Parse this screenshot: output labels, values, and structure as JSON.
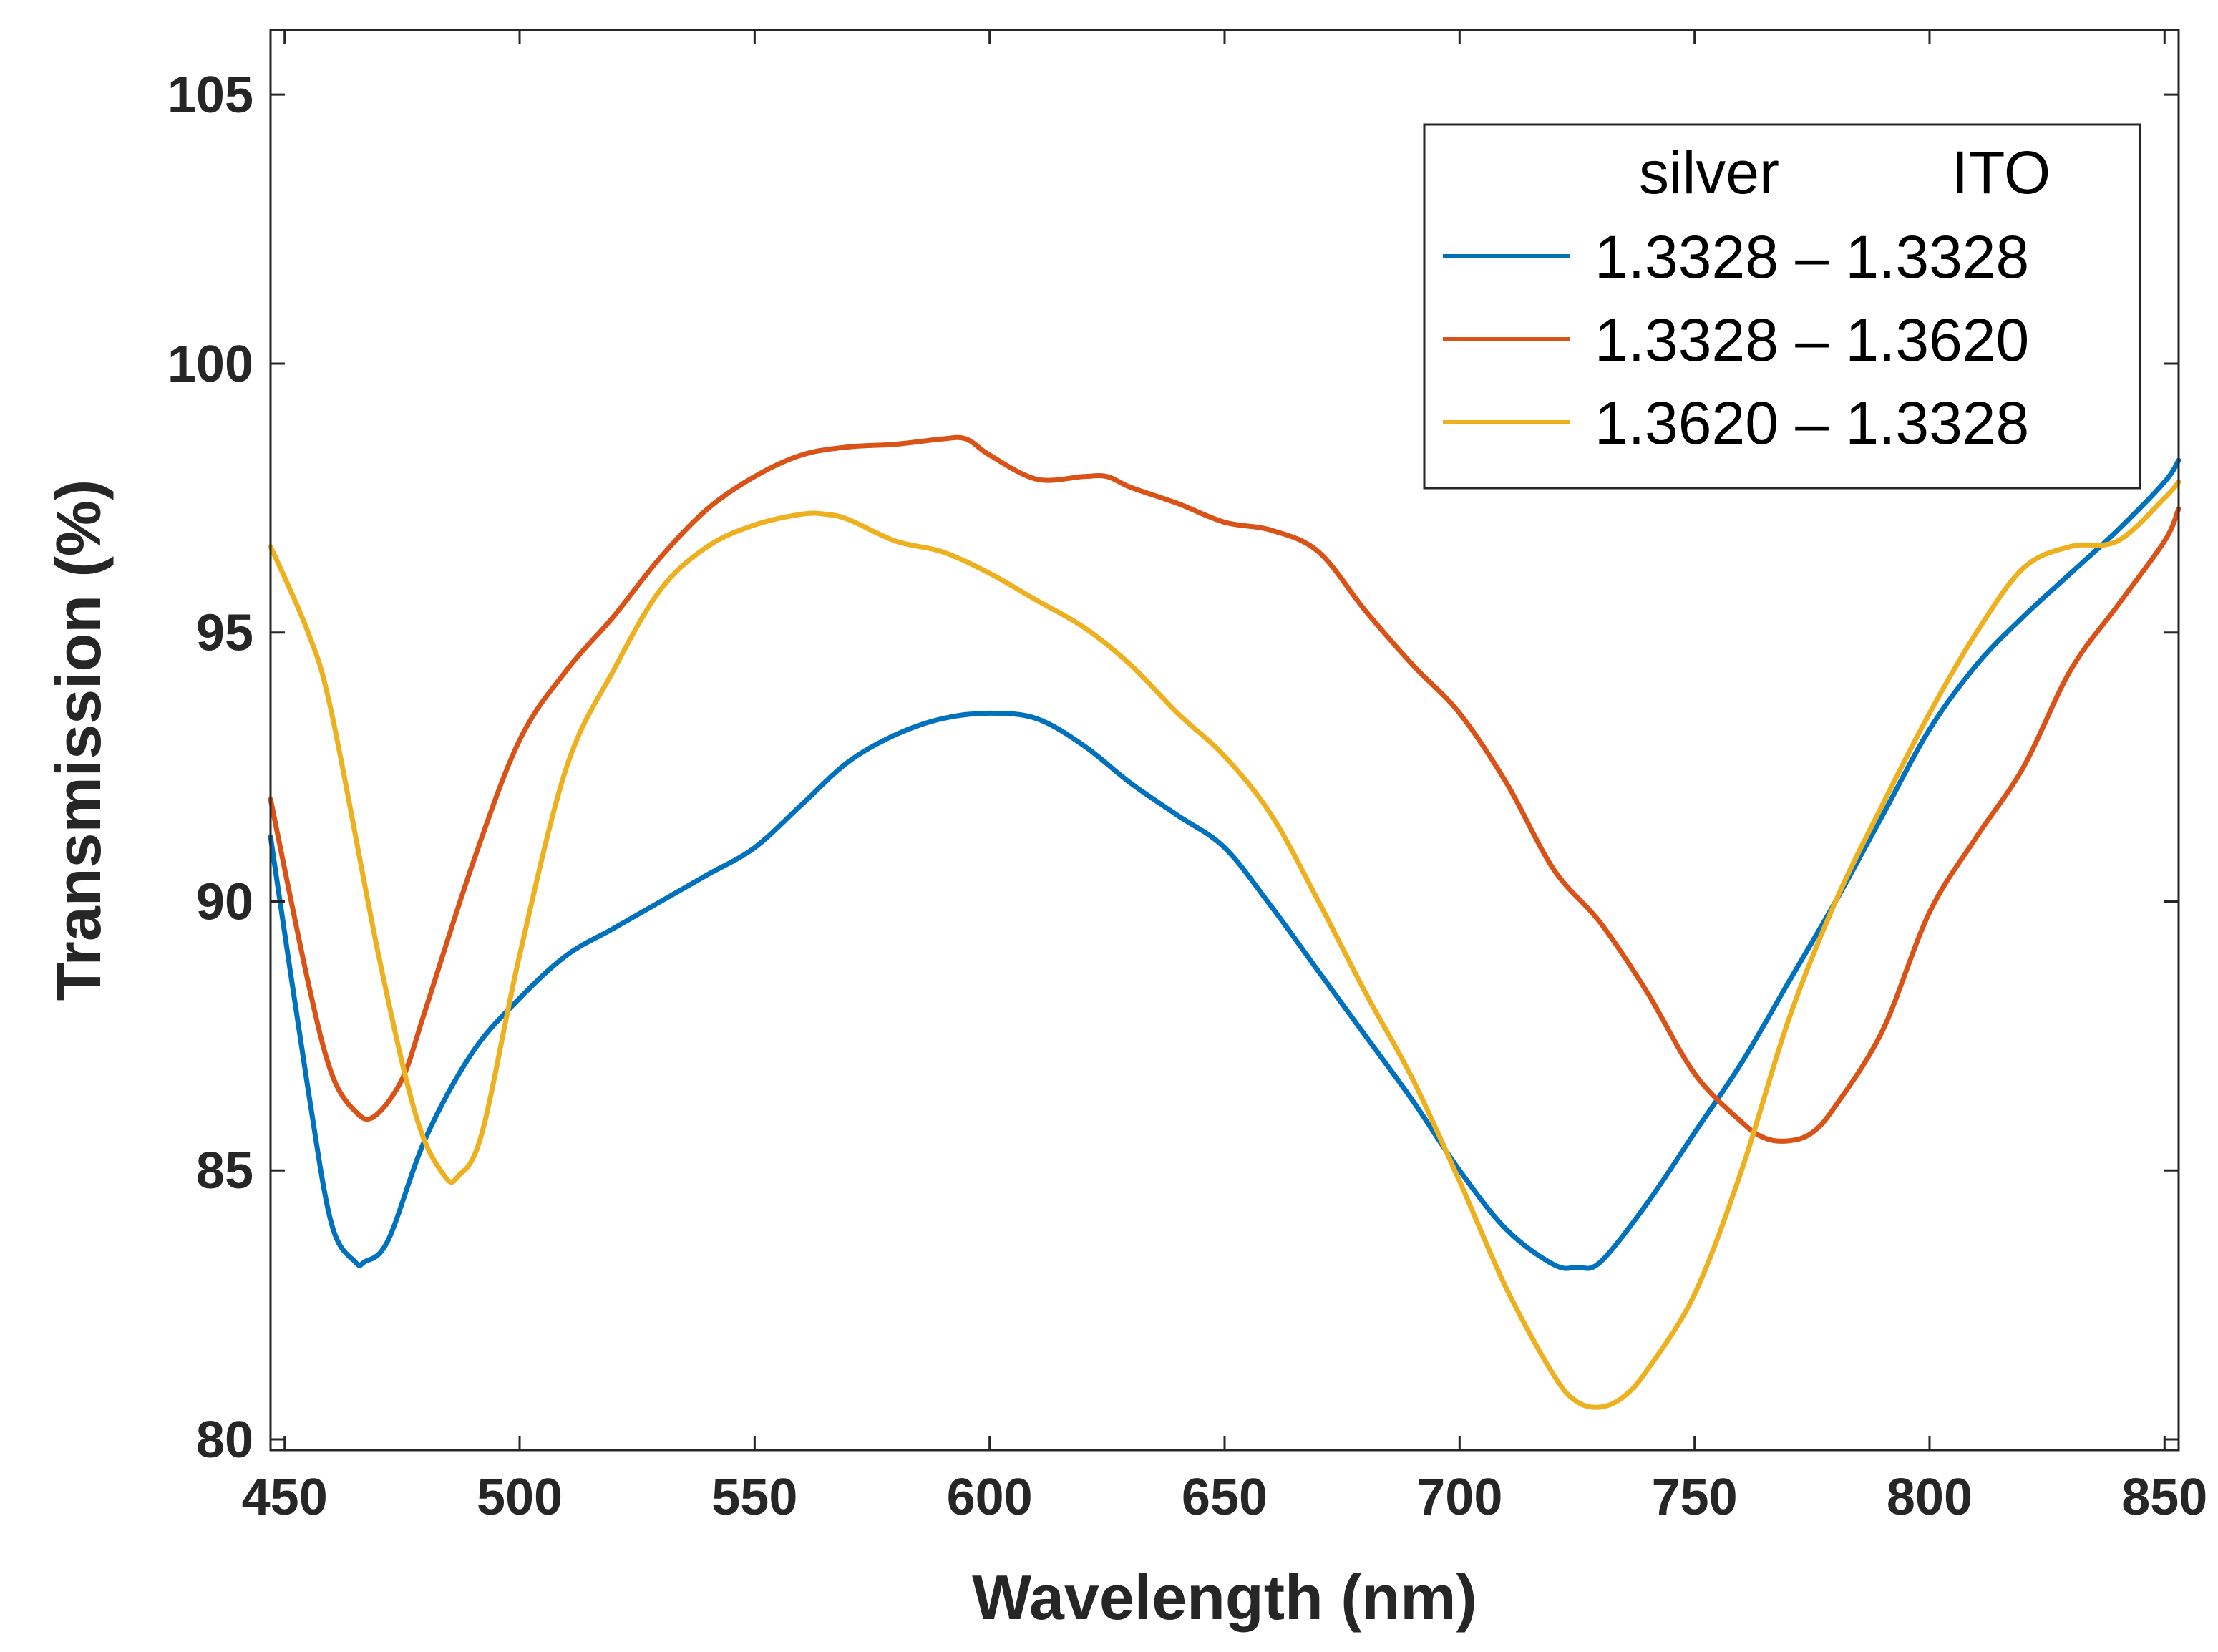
{
  "chart_data": {
    "type": "line",
    "title": "",
    "xlabel": "Wavelength (nm)",
    "ylabel": "Transmission (%)",
    "xlim": [
      447,
      853
    ],
    "ylim": [
      79.8,
      106.2
    ],
    "xticks": [
      450,
      500,
      550,
      600,
      650,
      700,
      750,
      800,
      850
    ],
    "yticks": [
      80,
      85,
      90,
      95,
      100,
      105
    ],
    "grid": false,
    "legend": {
      "position": "top-right",
      "header_left": "silver",
      "header_right": "ITO"
    },
    "series": [
      {
        "name": "1.3328 – 1.3328",
        "color": "#0072BD",
        "x": [
          447,
          455,
          460,
          465,
          467,
          472,
          480,
          490,
          500,
          510,
          520,
          530,
          540,
          550,
          560,
          570,
          580,
          590,
          600,
          610,
          620,
          630,
          640,
          650,
          660,
          670,
          680,
          690,
          700,
          710,
          720,
          725,
          730,
          740,
          750,
          760,
          770,
          780,
          790,
          800,
          810,
          820,
          830,
          840,
          850,
          853
        ],
        "y": [
          91.2,
          86.5,
          84.0,
          83.3,
          83.3,
          83.7,
          85.6,
          87.2,
          88.2,
          89.0,
          89.5,
          90.0,
          90.5,
          91.0,
          91.8,
          92.6,
          93.1,
          93.4,
          93.5,
          93.4,
          92.9,
          92.2,
          91.6,
          91.0,
          89.9,
          88.7,
          87.5,
          86.3,
          85.0,
          83.9,
          83.25,
          83.2,
          83.3,
          84.4,
          85.7,
          87.0,
          88.5,
          90.0,
          91.6,
          93.2,
          94.4,
          95.3,
          96.1,
          96.9,
          97.8,
          98.2
        ]
      },
      {
        "name": "1.3328 – 1.3620",
        "color": "#D95319",
        "x": [
          447,
          455,
          460,
          465,
          469,
          475,
          480,
          490,
          500,
          510,
          520,
          530,
          540,
          550,
          560,
          570,
          580,
          590,
          595,
          600,
          610,
          620,
          625,
          630,
          640,
          650,
          660,
          670,
          680,
          690,
          700,
          710,
          720,
          730,
          740,
          750,
          760,
          765,
          770,
          775,
          780,
          790,
          800,
          810,
          820,
          830,
          840,
          850,
          853
        ],
        "y": [
          91.9,
          88.5,
          86.8,
          86.1,
          86.0,
          86.7,
          88.0,
          90.7,
          93.0,
          94.3,
          95.3,
          96.4,
          97.3,
          97.9,
          98.3,
          98.45,
          98.5,
          98.6,
          98.6,
          98.3,
          97.85,
          97.9,
          97.9,
          97.7,
          97.4,
          97.05,
          96.9,
          96.5,
          95.4,
          94.4,
          93.5,
          92.2,
          90.6,
          89.6,
          88.3,
          86.8,
          85.9,
          85.6,
          85.55,
          85.7,
          86.2,
          87.6,
          89.8,
          91.2,
          92.5,
          94.3,
          95.5,
          96.7,
          97.3
        ]
      },
      {
        "name": "1.3620 – 1.3328",
        "color": "#EDB120",
        "x": [
          447,
          455,
          460,
          470,
          478,
          484,
          487,
          492,
          500,
          510,
          520,
          530,
          540,
          550,
          560,
          565,
          570,
          580,
          590,
          600,
          610,
          620,
          630,
          640,
          650,
          660,
          670,
          680,
          690,
          700,
          710,
          720,
          725,
          730,
          735,
          740,
          750,
          760,
          770,
          780,
          790,
          800,
          810,
          820,
          830,
          840,
          850,
          853
        ],
        "y": [
          96.6,
          95.0,
          93.5,
          89.0,
          86.0,
          84.9,
          84.9,
          85.7,
          89.0,
          92.5,
          94.3,
          95.8,
          96.6,
          97.0,
          97.2,
          97.2,
          97.1,
          96.7,
          96.5,
          96.1,
          95.6,
          95.1,
          94.4,
          93.5,
          92.7,
          91.6,
          90.0,
          88.3,
          86.7,
          84.8,
          82.8,
          81.2,
          80.7,
          80.6,
          80.8,
          81.3,
          82.7,
          85.0,
          87.8,
          90.0,
          91.8,
          93.5,
          95.0,
          96.2,
          96.6,
          96.7,
          97.5,
          97.8
        ]
      }
    ]
  }
}
